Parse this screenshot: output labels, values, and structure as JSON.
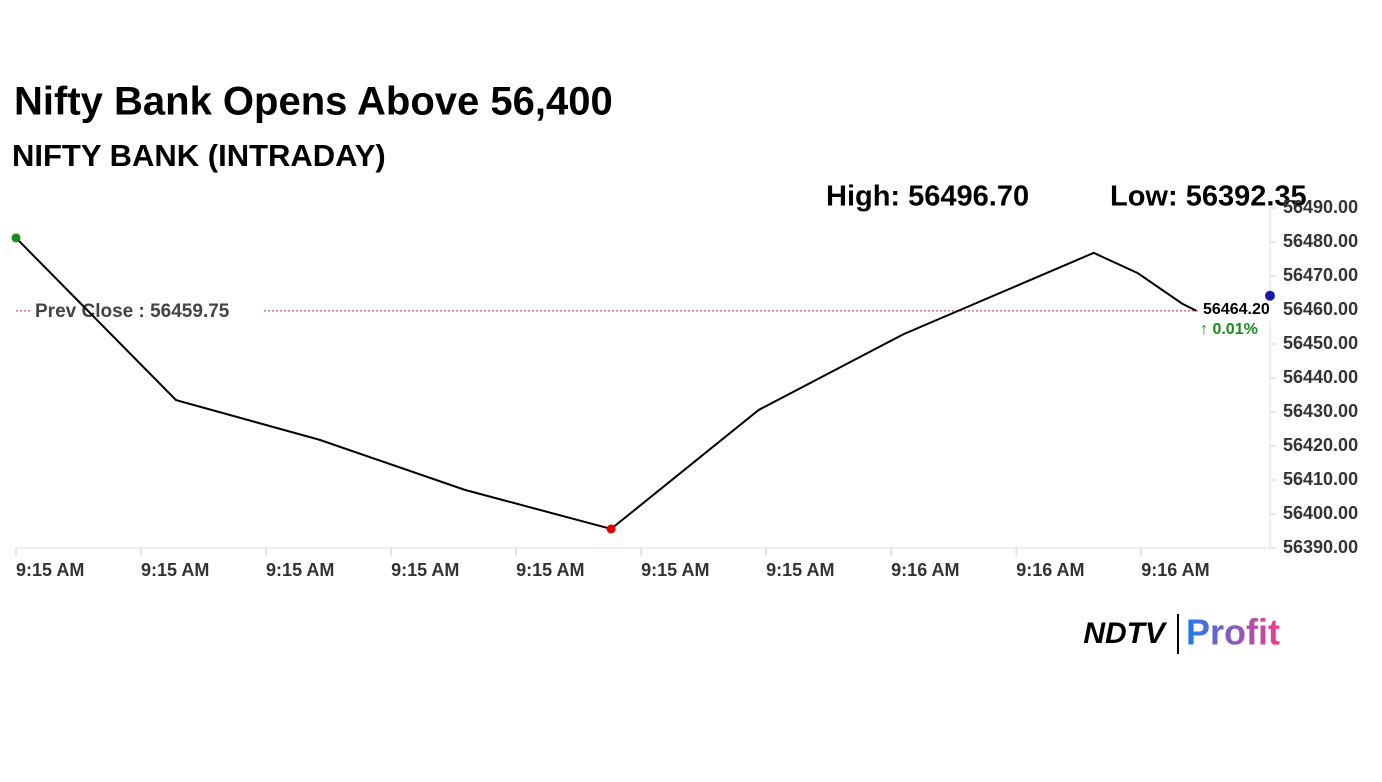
{
  "chart_data": {
    "type": "line",
    "title": "Nifty Bank Opens Above 56,400",
    "subtitle": "NIFTY BANK (INTRADAY)",
    "high_label": "High: 56496.70",
    "low_label": "Low: 56392.35",
    "xlim": [
      0,
      10.03
    ],
    "xticks": [
      {
        "value": 0,
        "label": "9:15 AM"
      },
      {
        "value": 1,
        "label": "9:15 AM"
      },
      {
        "value": 2,
        "label": "9:15 AM"
      },
      {
        "value": 3,
        "label": "9:15 AM"
      },
      {
        "value": 4,
        "label": "9:15 AM"
      },
      {
        "value": 5,
        "label": "9:15 AM"
      },
      {
        "value": 6,
        "label": "9:15 AM"
      },
      {
        "value": 7,
        "label": "9:16 AM"
      },
      {
        "value": 8,
        "label": "9:16 AM"
      },
      {
        "value": 9,
        "label": "9:16 AM"
      }
    ],
    "ylim": [
      56390,
      56490
    ],
    "yticks": [
      {
        "value": 56390,
        "label": "56390.00"
      },
      {
        "value": 56400,
        "label": "56400.00"
      },
      {
        "value": 56410,
        "label": "56410.00"
      },
      {
        "value": 56420,
        "label": "56420.00"
      },
      {
        "value": 56430,
        "label": "56430.00"
      },
      {
        "value": 56440,
        "label": "56440.00"
      },
      {
        "value": 56450,
        "label": "56450.00"
      },
      {
        "value": 56460,
        "label": "56460.00"
      },
      {
        "value": 56470,
        "label": "56470.00"
      },
      {
        "value": 56480,
        "label": "56480.00"
      },
      {
        "value": 56490,
        "label": "56490.00"
      }
    ],
    "series": [
      {
        "color": "#000000",
        "x": [
          0,
          1.28,
          2.43,
          3.59,
          4.76,
          5.94,
          7.1,
          8.62,
          8.97,
          9.33,
          9.44
        ],
        "values": [
          56481.2,
          56433.5,
          56421.8,
          56407.1,
          56395.6,
          56430.6,
          56452.9,
          56476.8,
          56470.9,
          56461.8,
          56459.8
        ]
      }
    ],
    "open_color": "#1a8a1a",
    "low_color": "#e00000",
    "prev_close": {
      "value": 56459.75,
      "label": "Prev Close : 56459.75",
      "color": "#c0392b"
    },
    "last_price": {
      "value": 56464.2,
      "label": "56464.20",
      "change_label": "↑ 0.01%",
      "color": "#1a1aa6",
      "change_color": "#1a8a1a"
    },
    "logo": {
      "left": "NDTV",
      "right": "Profit"
    }
  }
}
